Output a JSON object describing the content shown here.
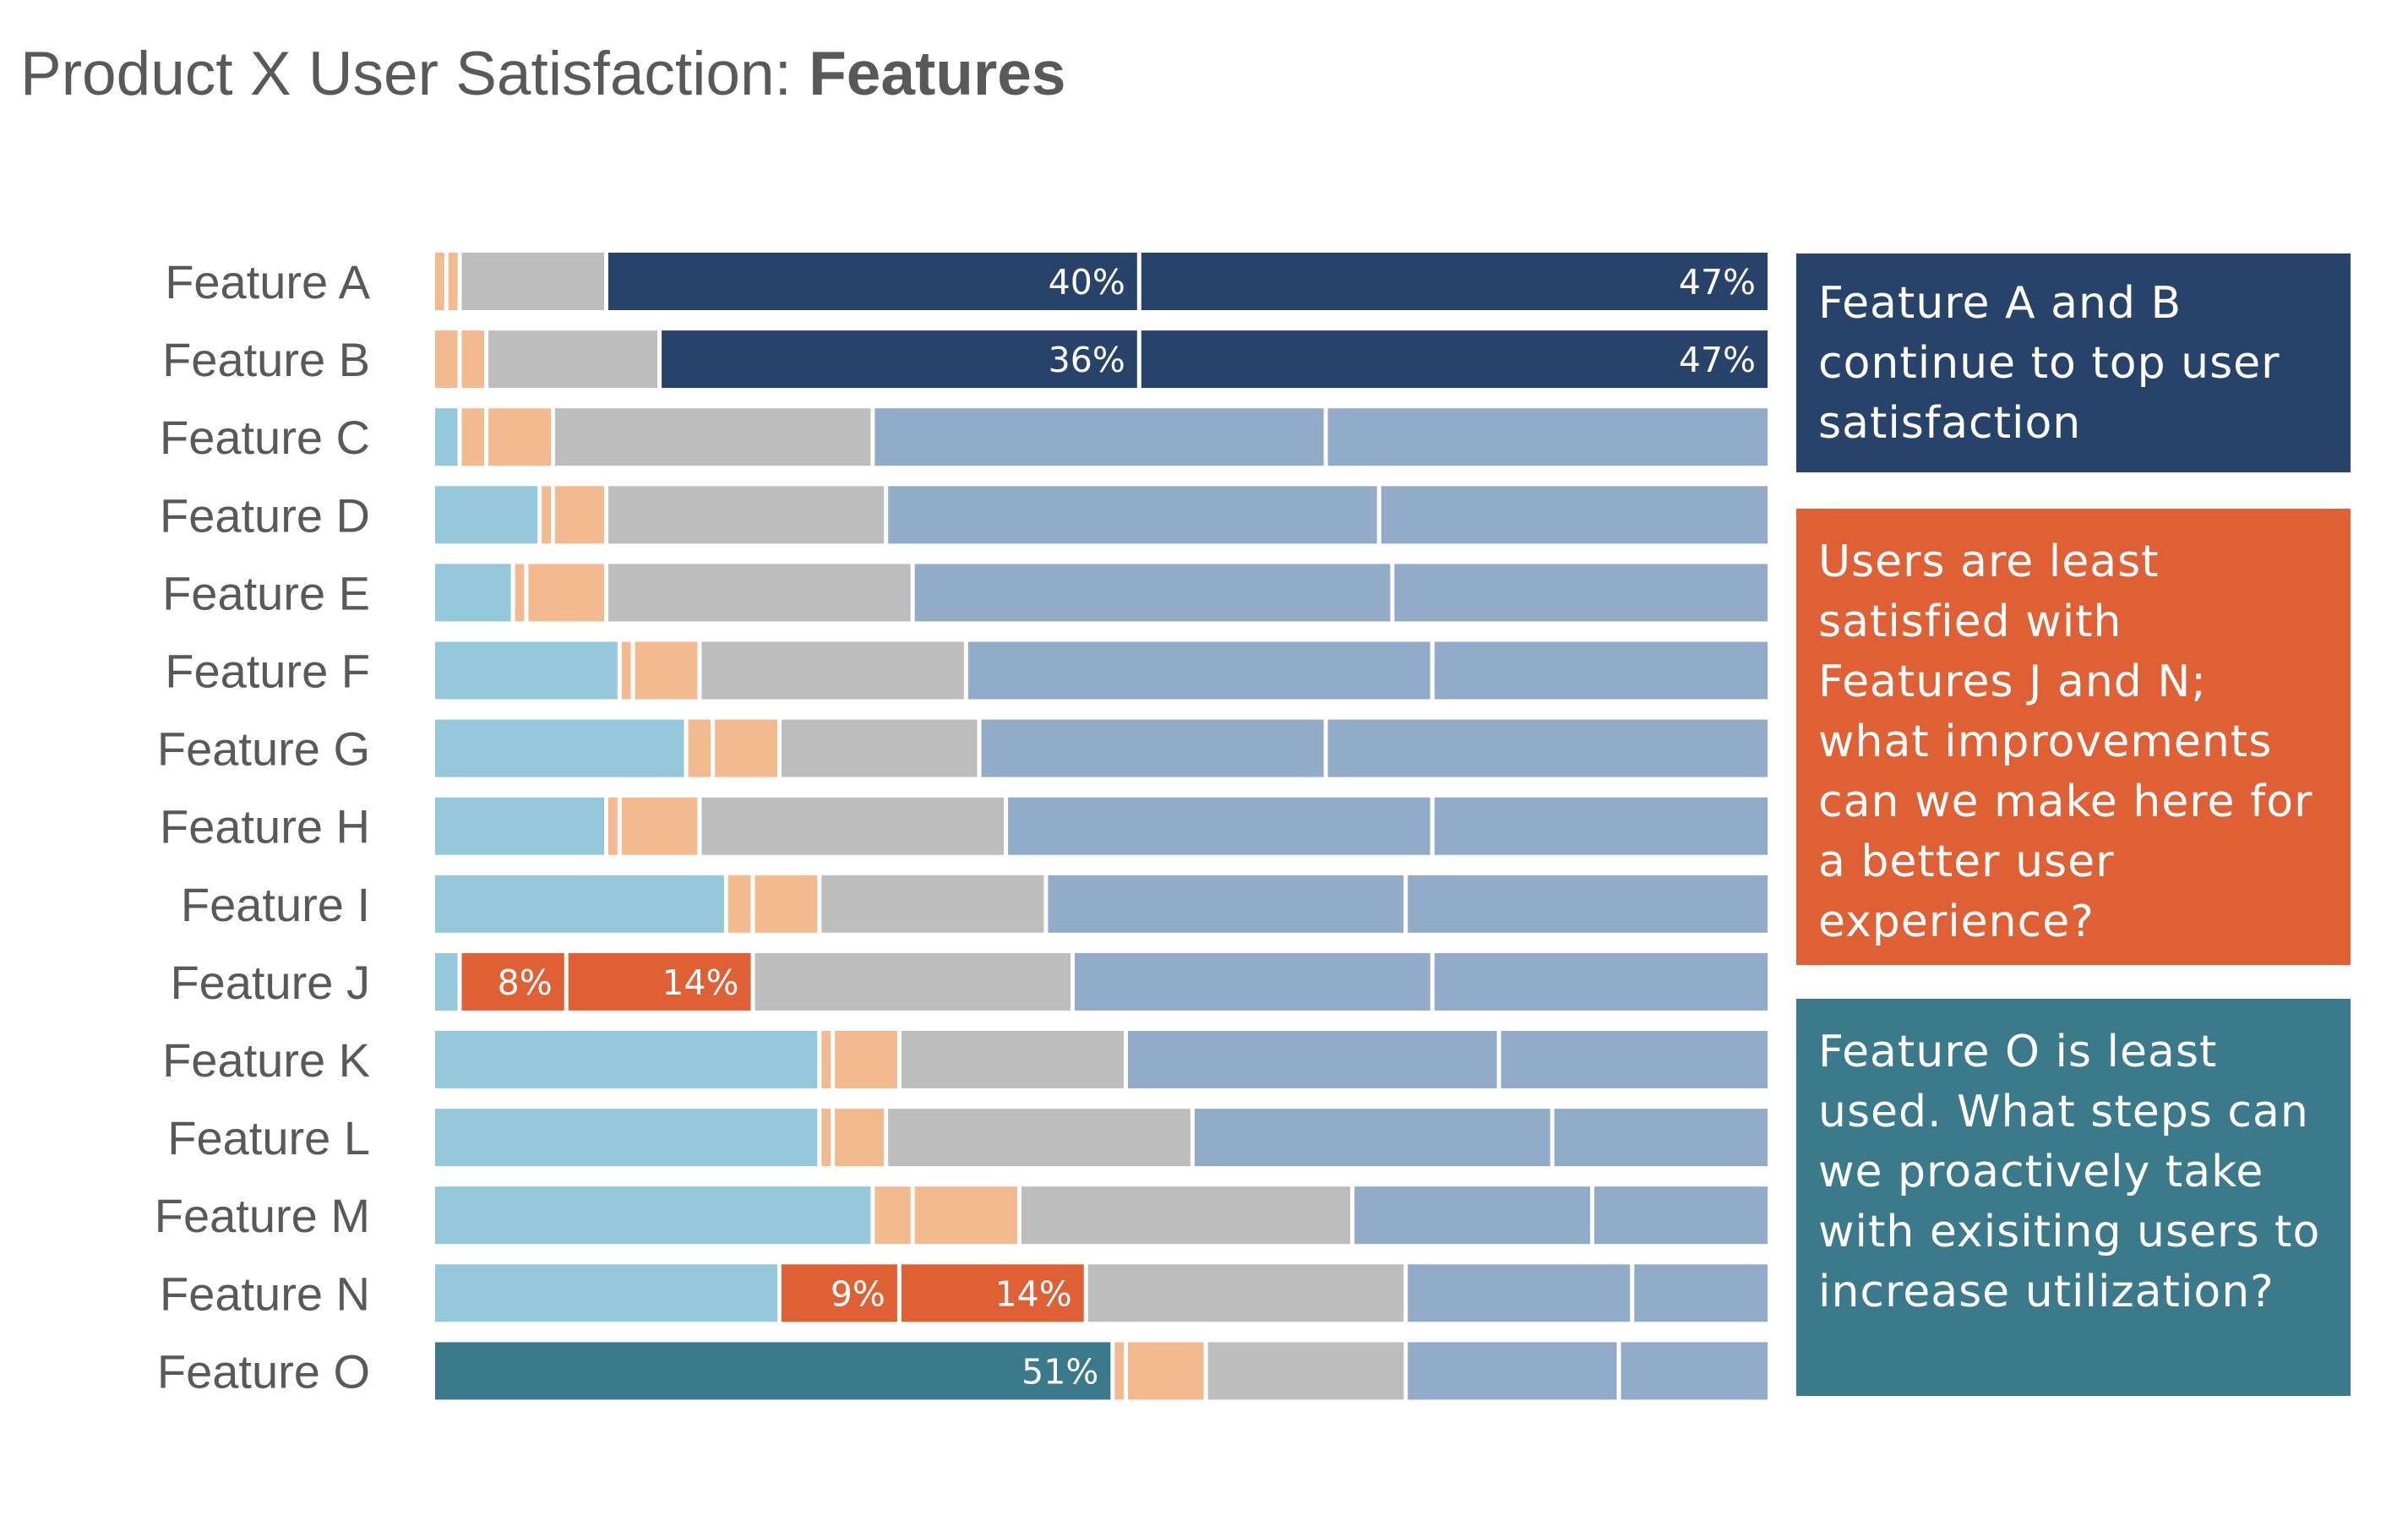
{
  "title": {
    "light": "Product X User Satisfaction: ",
    "bold": "Features"
  },
  "colors": {
    "light_blue": "#94c8da",
    "light_orange": "#f3b98f",
    "gray": "#bdbdbd",
    "steel_blue": "#91abc8",
    "navy": "#27436a",
    "orange_red": "#e06035",
    "teal": "#3a7a8a"
  },
  "callouts": [
    {
      "text": "Feature A and B continue to top user satisfaction"
    },
    {
      "text": "Users are least satisfied with Features J and N; what improvements can we make here for a better user experience?"
    },
    {
      "text": "Feature O is least used. What steps can we proactively take with exisiting users to increase utilization?"
    }
  ],
  "chart_data": {
    "type": "bar",
    "orientation": "horizontal",
    "stacked": true,
    "percent_stacked": true,
    "categories": [
      "Feature A",
      "Feature B",
      "Feature C",
      "Feature D",
      "Feature E",
      "Feature F",
      "Feature G",
      "Feature H",
      "Feature I",
      "Feature J",
      "Feature K",
      "Feature L",
      "Feature M",
      "Feature N",
      "Feature O"
    ],
    "series": [
      {
        "color": "#94c8da",
        "values": [
          0,
          0,
          2,
          8,
          6,
          14,
          19,
          13,
          22,
          2,
          29,
          29,
          33,
          26,
          51
        ]
      },
      {
        "color": "#f3b98f",
        "values": [
          1,
          2,
          2,
          1,
          1,
          1,
          2,
          1,
          2,
          8,
          1,
          1,
          3,
          9,
          1
        ]
      },
      {
        "color": "#f3b98f",
        "values": [
          1,
          2,
          5,
          4,
          6,
          5,
          5,
          6,
          5,
          14,
          5,
          4,
          8,
          14,
          6
        ]
      },
      {
        "color": "#bdbdbd",
        "values": [
          11,
          13,
          24,
          21,
          23,
          20,
          15,
          23,
          17,
          24,
          17,
          23,
          25,
          24,
          15
        ]
      },
      {
        "color": "#91abc8",
        "values": [
          40,
          36,
          34,
          37,
          36,
          35,
          26,
          32,
          27,
          27,
          28,
          27,
          18,
          17,
          16
        ]
      },
      {
        "color": "#91abc8",
        "values": [
          47,
          47,
          33,
          29,
          28,
          25,
          33,
          25,
          27,
          25,
          20,
          16,
          13,
          10,
          11
        ]
      }
    ],
    "highlighted_segments": [
      {
        "category": "Feature A",
        "series": 4,
        "color": "#27436a",
        "label": "40%"
      },
      {
        "category": "Feature A",
        "series": 5,
        "color": "#27436a",
        "label": "47%"
      },
      {
        "category": "Feature B",
        "series": 4,
        "color": "#27436a",
        "label": "36%"
      },
      {
        "category": "Feature B",
        "series": 5,
        "color": "#27436a",
        "label": "47%"
      },
      {
        "category": "Feature J",
        "series": 1,
        "color": "#e06035",
        "label": "8%"
      },
      {
        "category": "Feature J",
        "series": 2,
        "color": "#e06035",
        "label": "14%"
      },
      {
        "category": "Feature N",
        "series": 1,
        "color": "#e06035",
        "label": "9%"
      },
      {
        "category": "Feature N",
        "series": 2,
        "color": "#e06035",
        "label": "14%"
      },
      {
        "category": "Feature O",
        "series": 0,
        "color": "#3a7a8a",
        "label": "51%"
      }
    ],
    "legend": "none",
    "grid": false
  }
}
